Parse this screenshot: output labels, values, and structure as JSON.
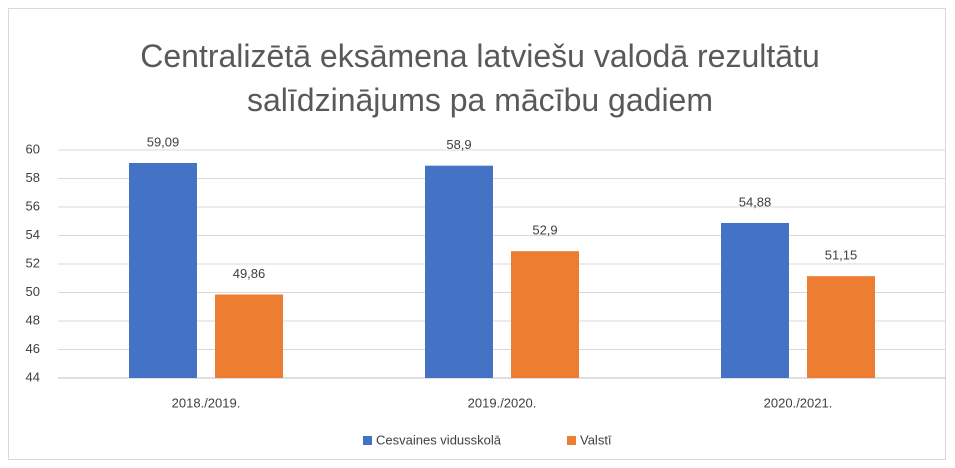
{
  "chart_data": {
    "type": "bar",
    "title": "Centralizētā eksāmena latviešu valodā rezultātu salīdzinājums pa mācību gadiem",
    "categories": [
      "2018./2019.",
      "2019./2020.",
      "2020./2021."
    ],
    "series": [
      {
        "name": "Cesvaines vidusskolā",
        "color": "#4472c4",
        "values": [
          59.09,
          58.9,
          54.88
        ],
        "value_labels": [
          "59,09",
          "58,9",
          "54,88"
        ]
      },
      {
        "name": "Valstī",
        "color": "#ed7d31",
        "values": [
          49.86,
          52.9,
          51.15
        ],
        "value_labels": [
          "49,86",
          "52,9",
          "51,15"
        ]
      }
    ],
    "ylim": [
      44,
      60
    ],
    "yticks": [
      44,
      46,
      48,
      50,
      52,
      54,
      56,
      58,
      60
    ],
    "grid": true,
    "legend": "bottom"
  }
}
